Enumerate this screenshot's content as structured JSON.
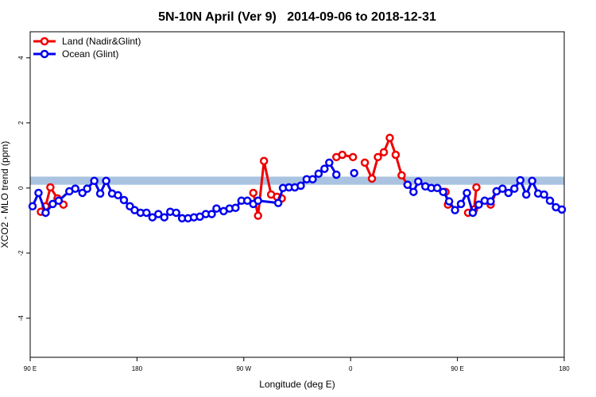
{
  "chart_data": {
    "type": "line",
    "title": "5N-10N April (Ver 9)   2014-09-06 to 2018-12-31",
    "x_label": "Longitude (deg E)",
    "y_label": "XCO2 - MLO trend (ppm)",
    "xlim": [
      90,
      540
    ],
    "xticks": [
      {
        "value": 90,
        "label": "90 E"
      },
      {
        "value": 180,
        "label": "180"
      },
      {
        "value": 270,
        "label": "90 W"
      },
      {
        "value": 360,
        "label": "0"
      },
      {
        "value": 450,
        "label": "90 E"
      },
      {
        "value": 540,
        "label": "180"
      }
    ],
    "ylim": [
      -5.2,
      4.8
    ],
    "yticks": [
      -4,
      -2,
      0,
      2,
      4
    ],
    "band": {
      "range": [
        0.1,
        0.35
      ],
      "color": "#a9c3e0"
    },
    "legend": "top-left",
    "series": [
      {
        "name": "Land (Nadir&Glint)",
        "color": "#ee0000",
        "x": [
          99,
          103,
          107,
          113,
          118,
          200,
          278,
          282,
          287,
          293,
          298,
          302,
          330,
          348,
          353,
          362,
          365,
          372,
          378,
          383,
          388,
          393,
          398,
          403,
          408,
          410,
          440,
          442,
          445,
          459,
          464,
          466,
          470,
          478,
          483
        ],
        "values": [
          -0.73,
          -0.56,
          0.02,
          -0.32,
          -0.51,
          null,
          -0.15,
          -0.85,
          0.83,
          -0.2,
          -0.27,
          -0.32,
          null,
          0.95,
          1.02,
          0.95,
          null,
          0.78,
          0.29,
          0.95,
          1.1,
          1.54,
          1.02,
          0.39,
          0.1,
          null,
          -0.12,
          -0.51,
          null,
          -0.76,
          -0.66,
          0.02,
          null,
          -0.51,
          -0.1
        ]
      },
      {
        "name": "Ocean (Glint)",
        "color": "#0000ee",
        "x": [
          92,
          97,
          103,
          109,
          114,
          123,
          128,
          134,
          138,
          144,
          149,
          154,
          159,
          164,
          169,
          174,
          178,
          183,
          188,
          193,
          198,
          203,
          208,
          213,
          218,
          223,
          228,
          233,
          238,
          243,
          247,
          253,
          258,
          263,
          268,
          273,
          278,
          282,
          299,
          303,
          308,
          313,
          318,
          323,
          328,
          333,
          338,
          342,
          348,
          355,
          363,
          385,
          408,
          413,
          417,
          423,
          428,
          433,
          438,
          443,
          448,
          453,
          458,
          463,
          468,
          473,
          478,
          483,
          488,
          493,
          498,
          503,
          508,
          513,
          518,
          523,
          528,
          533,
          538
        ],
        "values": [
          -0.56,
          -0.15,
          -0.76,
          -0.49,
          -0.39,
          -0.1,
          -0.02,
          -0.15,
          -0.02,
          0.22,
          -0.17,
          0.22,
          -0.17,
          -0.22,
          -0.37,
          -0.56,
          -0.68,
          -0.76,
          -0.76,
          -0.9,
          -0.8,
          -0.9,
          -0.73,
          -0.76,
          -0.93,
          -0.93,
          -0.9,
          -0.88,
          -0.8,
          -0.8,
          -0.63,
          -0.71,
          -0.63,
          -0.61,
          -0.39,
          -0.39,
          -0.49,
          -0.39,
          -0.46,
          0,
          0.02,
          0.02,
          0.07,
          0.27,
          0.27,
          0.44,
          0.59,
          0.78,
          0.41,
          null,
          0.46,
          null,
          0.1,
          -0.12,
          0.2,
          0.05,
          0,
          0,
          -0.12,
          -0.41,
          -0.68,
          -0.49,
          -0.15,
          -0.76,
          -0.51,
          -0.39,
          -0.41,
          -0.1,
          -0.02,
          -0.15,
          -0.02,
          0.24,
          -0.2,
          0.22,
          -0.17,
          -0.2,
          -0.39,
          -0.59,
          -0.66
        ]
      }
    ]
  }
}
